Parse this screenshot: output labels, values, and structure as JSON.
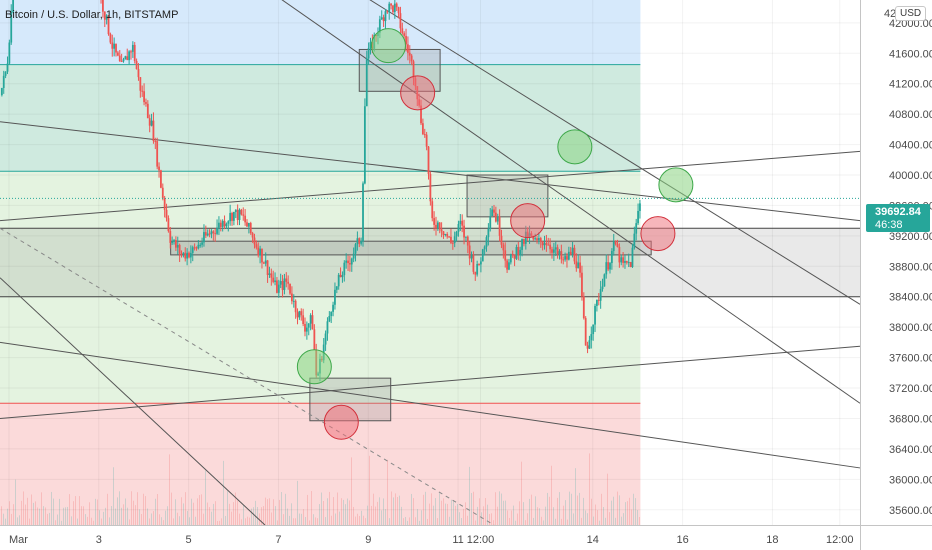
{
  "header": {
    "title": "Bitcoin / U.S. Dollar, 1h, BITSTAMP",
    "currency": "USD"
  },
  "price_axis": {
    "top_partial_label": "42",
    "last_price": "39692.84",
    "countdown": "46:38"
  },
  "colors": {
    "up": "#26a69a",
    "down": "#ef5350",
    "zone_blue": "#d6e9fb",
    "zone_teal": "#cfeadf",
    "zone_green": "#e4f3e0",
    "zone_red": "#fbdada",
    "price_tag": "#26a69a"
  },
  "chart_data": {
    "type": "candlestick",
    "title": "Bitcoin / U.S. Dollar, 1h, BITSTAMP",
    "xlabel": "",
    "ylabel": "",
    "ylim": [
      35400,
      42300
    ],
    "y_ticks": [
      42000,
      41600,
      41200,
      40800,
      40400,
      40000,
      39600,
      39200,
      38800,
      38400,
      38000,
      37600,
      37200,
      36800,
      36400,
      36000,
      35600
    ],
    "x_ticks": [
      "Mar",
      "3",
      "5",
      "7",
      "9",
      "11",
      "12:00",
      "14",
      "16",
      "18",
      "12:00"
    ],
    "x_tick_days": [
      1,
      3,
      5,
      7,
      9,
      11,
      11.5,
      14,
      16,
      18,
      19.5
    ],
    "x_range_days": [
      0.8,
      19.95
    ],
    "last_data_day": 15.06,
    "last_price": 39692.84,
    "zones": [
      {
        "from": 41450,
        "to": 42300,
        "color": "zone_blue"
      },
      {
        "from": 40050,
        "to": 41450,
        "color": "zone_teal"
      },
      {
        "from": 37000,
        "to": 40050,
        "color": "zone_green"
      },
      {
        "from": 35400,
        "to": 37000,
        "color": "zone_red"
      }
    ],
    "horizontal_lines": [
      41450,
      40050,
      39300,
      38400,
      37000
    ],
    "support_band": [
      38400,
      39300
    ],
    "boxes": [
      {
        "d1": 8.8,
        "d2": 10.6,
        "p1": 41650,
        "p2": 41100
      },
      {
        "d1": 4.6,
        "d2": 15.3,
        "p1": 39130,
        "p2": 38950
      },
      {
        "d1": 11.2,
        "d2": 13.0,
        "p1": 40000,
        "p2": 39450
      },
      {
        "d1": 7.7,
        "d2": 9.5,
        "p1": 37330,
        "p2": 36770
      }
    ],
    "trend_lines": [
      {
        "d1": 0.8,
        "p1": 39400,
        "d2": 19.95,
        "p2": 40310
      },
      {
        "d1": 0.8,
        "p1": 40700,
        "d2": 19.95,
        "p2": 39400
      },
      {
        "d1": 0.8,
        "p1": 36800,
        "d2": 19.95,
        "p2": 37750
      },
      {
        "d1": 0.8,
        "p1": 37800,
        "d2": 19.95,
        "p2": 36150
      },
      {
        "d1": 6.6,
        "p1": 42500,
        "d2": 19.95,
        "p2": 37000
      },
      {
        "d1": 8.5,
        "p1": 42500,
        "d2": 19.95,
        "p2": 38300
      },
      {
        "d1": 0.8,
        "p1": 38650,
        "d2": 6.7,
        "p2": 35400
      }
    ],
    "dashed_lines": [
      {
        "d1": 0.8,
        "p1": 39300,
        "d2": 11.8,
        "p2": 35400
      }
    ],
    "circles": [
      {
        "day": 9.45,
        "price": 41700,
        "color": "green"
      },
      {
        "day": 10.1,
        "price": 41080,
        "color": "red"
      },
      {
        "day": 13.6,
        "price": 40370,
        "color": "green"
      },
      {
        "day": 15.85,
        "price": 39870,
        "color": "green"
      },
      {
        "day": 12.55,
        "price": 39400,
        "color": "red"
      },
      {
        "day": 15.45,
        "price": 39230,
        "color": "red"
      },
      {
        "day": 7.8,
        "price": 37480,
        "color": "green"
      },
      {
        "day": 8.4,
        "price": 36750,
        "color": "red"
      }
    ],
    "price_path": [
      [
        0.8,
        41050
      ],
      [
        0.95,
        41400
      ],
      [
        1.1,
        42500
      ],
      [
        2.0,
        42900
      ],
      [
        2.9,
        42600
      ],
      [
        3.1,
        42200
      ],
      [
        3.3,
        41700
      ],
      [
        3.5,
        41400
      ],
      [
        3.75,
        41700
      ],
      [
        3.9,
        41200
      ],
      [
        4.05,
        40900
      ],
      [
        4.2,
        40600
      ],
      [
        4.4,
        39800
      ],
      [
        4.6,
        39150
      ],
      [
        4.85,
        38950
      ],
      [
        5.1,
        39000
      ],
      [
        5.4,
        39200
      ],
      [
        5.7,
        39350
      ],
      [
        6.0,
        39500
      ],
      [
        6.2,
        39450
      ],
      [
        6.45,
        39150
      ],
      [
        6.7,
        38850
      ],
      [
        6.95,
        38500
      ],
      [
        7.2,
        38600
      ],
      [
        7.35,
        38300
      ],
      [
        7.6,
        38000
      ],
      [
        7.75,
        38100
      ],
      [
        7.85,
        37300
      ],
      [
        8.0,
        37750
      ],
      [
        8.2,
        38350
      ],
      [
        8.4,
        38700
      ],
      [
        8.6,
        38900
      ],
      [
        8.85,
        39200
      ],
      [
        8.95,
        41500
      ],
      [
        9.2,
        41900
      ],
      [
        9.4,
        42200
      ],
      [
        9.6,
        42200
      ],
      [
        9.75,
        41900
      ],
      [
        9.95,
        41500
      ],
      [
        10.05,
        41250
      ],
      [
        10.15,
        40800
      ],
      [
        10.3,
        40400
      ],
      [
        10.4,
        39400
      ],
      [
        10.6,
        39350
      ],
      [
        10.85,
        39100
      ],
      [
        11.05,
        39350
      ],
      [
        11.2,
        39100
      ],
      [
        11.4,
        38700
      ],
      [
        11.55,
        39000
      ],
      [
        11.75,
        39600
      ],
      [
        11.9,
        39350
      ],
      [
        12.1,
        38800
      ],
      [
        12.3,
        39000
      ],
      [
        12.55,
        39200
      ],
      [
        12.75,
        39100
      ],
      [
        12.95,
        39150
      ],
      [
        13.15,
        39000
      ],
      [
        13.35,
        38850
      ],
      [
        13.55,
        39000
      ],
      [
        13.7,
        38750
      ],
      [
        13.85,
        37700
      ],
      [
        14.05,
        38200
      ],
      [
        14.25,
        38700
      ],
      [
        14.5,
        39100
      ],
      [
        14.65,
        38800
      ],
      [
        14.85,
        38850
      ],
      [
        14.95,
        39300
      ],
      [
        15.06,
        39692.84
      ]
    ]
  }
}
